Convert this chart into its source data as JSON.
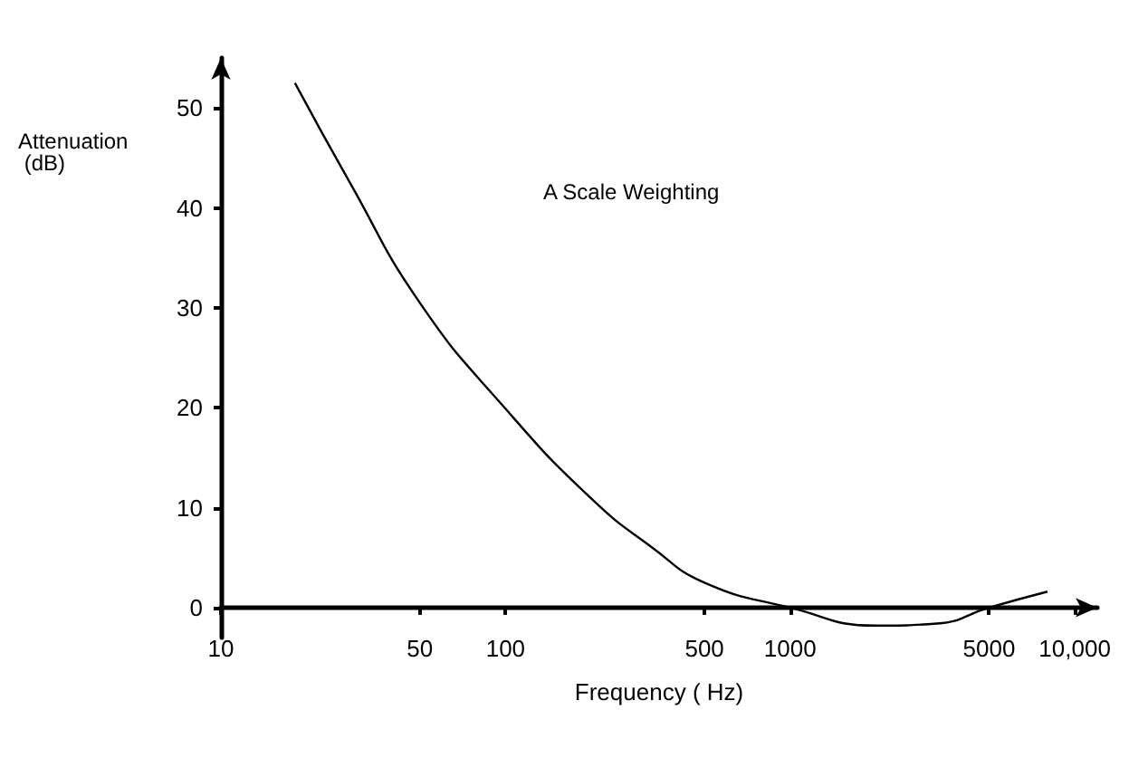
{
  "chart_data": {
    "type": "line",
    "xlabel": "Frequency ( Hz)",
    "ylabel": "Attenuation (dB)",
    "annotations": [
      "A Scale Weighting"
    ],
    "log": "x",
    "grid": false,
    "marker": "none",
    "line_style": "solid",
    "series": [
      {
        "color": "#000000",
        "x": [
          18.2,
          28.3,
          50,
          100,
          202,
          328,
          500,
          1000,
          2000,
          3280,
          5000,
          8020
        ],
        "values": [
          52.5,
          42.6,
          30.5,
          19.9,
          10.8,
          6.0,
          2.5,
          0,
          -1.8,
          -1.6,
          0,
          1.6
        ]
      }
    ],
    "xlim": [
      10,
      12000
    ],
    "xticks": [
      10,
      50,
      100,
      500,
      1000,
      5000,
      {
        "value": 10000,
        "label": "10,000"
      }
    ],
    "ylim": [
      -3,
      55
    ],
    "yticks": [
      0,
      10,
      20,
      30,
      40,
      50
    ]
  }
}
